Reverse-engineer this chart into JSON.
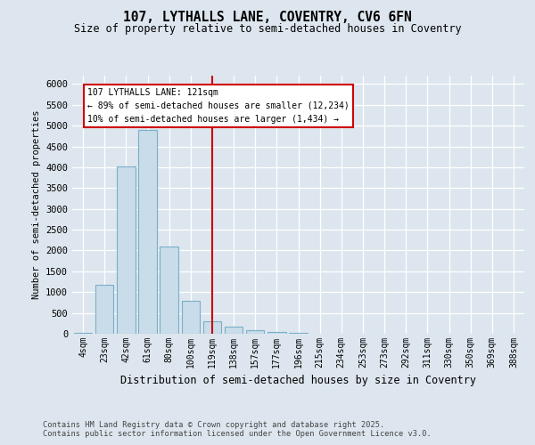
{
  "title_line1": "107, LYTHALLS LANE, COVENTRY, CV6 6FN",
  "title_line2": "Size of property relative to semi-detached houses in Coventry",
  "xlabel": "Distribution of semi-detached houses by size in Coventry",
  "ylabel": "Number of semi-detached properties",
  "bar_labels": [
    "4sqm",
    "23sqm",
    "42sqm",
    "61sqm",
    "80sqm",
    "100sqm",
    "119sqm",
    "138sqm",
    "157sqm",
    "177sqm",
    "196sqm",
    "215sqm",
    "234sqm",
    "253sqm",
    "273sqm",
    "292sqm",
    "311sqm",
    "330sqm",
    "350sqm",
    "369sqm",
    "388sqm"
  ],
  "bar_values": [
    28,
    1180,
    4020,
    4900,
    2100,
    800,
    290,
    175,
    95,
    48,
    18,
    8,
    4,
    2,
    2,
    1,
    0,
    0,
    0,
    0,
    0
  ],
  "bar_color": "#c9dcea",
  "bar_edge_color": "#7aafc8",
  "vline_color": "#cc0000",
  "vline_pos": 6.0,
  "annotation_title": "107 LYTHALLS LANE: 121sqm",
  "annotation_line1": "← 89% of semi-detached houses are smaller (12,234)",
  "annotation_line2": "10% of semi-detached houses are larger (1,434) →",
  "annotation_box_facecolor": "#ffffff",
  "annotation_box_edgecolor": "#cc0000",
  "ylim_max": 6200,
  "yticks": [
    0,
    500,
    1000,
    1500,
    2000,
    2500,
    3000,
    3500,
    4000,
    4500,
    5000,
    5500,
    6000
  ],
  "bg_color": "#dde6ee",
  "plot_bg_color": "#dde6ee",
  "grid_color": "#ffffff",
  "footnote_line1": "Contains HM Land Registry data © Crown copyright and database right 2025.",
  "footnote_line2": "Contains public sector information licensed under the Open Government Licence v3.0."
}
